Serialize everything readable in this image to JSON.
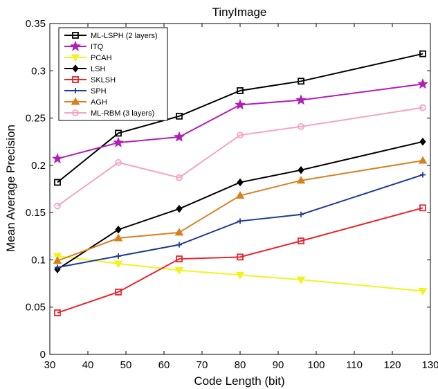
{
  "chart_data": {
    "type": "line",
    "title": "TinyImage",
    "xlabel": "Code Length (bit)",
    "ylabel": "Mean Average Precision",
    "xlim": [
      30,
      130
    ],
    "ylim": [
      0,
      0.35
    ],
    "xticks": [
      30,
      40,
      50,
      60,
      70,
      80,
      90,
      100,
      110,
      120,
      130
    ],
    "yticks": [
      0,
      0.05,
      0.1,
      0.15,
      0.2,
      0.25,
      0.3,
      0.35
    ],
    "xtick_labels": [
      "30",
      "40",
      "50",
      "60",
      "70",
      "80",
      "90",
      "100",
      "110",
      "120",
      "130"
    ],
    "ytick_labels": [
      "0",
      "0.05",
      "0.1",
      "0.15",
      "0.2",
      "0.25",
      "0.3",
      "0.35"
    ],
    "grid": false,
    "legend_position": "top-left",
    "x": [
      32,
      48,
      64,
      80,
      96,
      128
    ],
    "series": [
      {
        "name": "ML-LSPH (2 layers)",
        "color": "#000000",
        "marker": "square",
        "values": [
          0.182,
          0.234,
          0.252,
          0.279,
          0.289,
          0.318
        ]
      },
      {
        "name": "ITQ",
        "color": "#b01eb8",
        "marker": "star",
        "values": [
          0.207,
          0.224,
          0.23,
          0.264,
          0.269,
          0.286
        ]
      },
      {
        "name": "PCAH",
        "color": "#f2f221",
        "marker": "triangle-down",
        "values": [
          0.104,
          0.096,
          0.089,
          0.084,
          0.079,
          0.067
        ]
      },
      {
        "name": "LSH",
        "color": "#000000",
        "marker": "diamond",
        "values": [
          0.09,
          0.132,
          0.154,
          0.182,
          0.195,
          0.225
        ]
      },
      {
        "name": "SKLSH",
        "color": "#e8232a",
        "marker": "square",
        "values": [
          0.044,
          0.066,
          0.101,
          0.103,
          0.12,
          0.155
        ]
      },
      {
        "name": "SPH",
        "color": "#1f3a93",
        "marker": "plus",
        "values": [
          0.092,
          0.104,
          0.116,
          0.141,
          0.148,
          0.19
        ]
      },
      {
        "name": "AGH",
        "color": "#d7801f",
        "marker": "triangle-up",
        "values": [
          0.099,
          0.123,
          0.129,
          0.168,
          0.184,
          0.205
        ]
      },
      {
        "name": "ML-RBM (3 layers)",
        "color": "#f4a3c4",
        "marker": "circle",
        "values": [
          0.157,
          0.203,
          0.187,
          0.232,
          0.241,
          0.261
        ]
      }
    ]
  }
}
